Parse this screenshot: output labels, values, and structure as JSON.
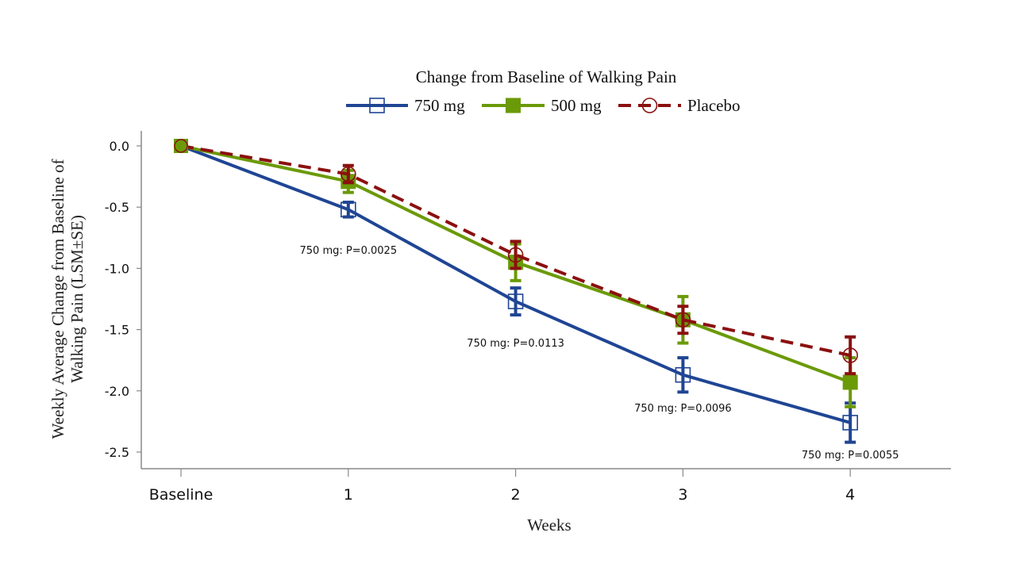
{
  "chart_data": {
    "type": "line",
    "title": "Change from Baseline of Walking Pain",
    "xlabel": "Weeks",
    "ylabel_lines": [
      "Weekly Average Change from Baseline of",
      "Walking Pain (LSM±SE)"
    ],
    "categories": [
      "Baseline",
      "1",
      "2",
      "3",
      "4"
    ],
    "ylim": [
      -2.62,
      0.12
    ],
    "yticks": [
      0.0,
      -0.5,
      -1.0,
      -1.5,
      -2.0,
      -2.5
    ],
    "ytick_labels": [
      "0.0",
      "-0.5",
      "-1.0",
      "-1.5",
      "-2.0",
      "-2.5"
    ],
    "grid": false,
    "legend_position": "top-center",
    "series": [
      {
        "name": "750 mg",
        "color": "#1f4594",
        "line_style": "solid",
        "marker": "open-square",
        "values": [
          0.0,
          -0.52,
          -1.27,
          -1.87,
          -2.26
        ],
        "se": [
          0.0,
          0.06,
          0.11,
          0.14,
          0.16
        ]
      },
      {
        "name": "500 mg",
        "color": "#6b9a08",
        "line_style": "solid",
        "marker": "filled-square",
        "values": [
          0.0,
          -0.29,
          -0.95,
          -1.42,
          -1.93
        ],
        "se": [
          0.0,
          0.09,
          0.15,
          0.19,
          0.2
        ]
      },
      {
        "name": "Placebo",
        "color": "#8b1010",
        "line_style": "dashed",
        "marker": "open-circle",
        "values": [
          0.0,
          -0.23,
          -0.89,
          -1.42,
          -1.71
        ],
        "se": [
          0.0,
          0.07,
          0.11,
          0.11,
          0.15
        ]
      }
    ],
    "annotations": [
      {
        "category": "1",
        "text": "750 mg: P=0.0025"
      },
      {
        "category": "2",
        "text": "750 mg: P=0.0113"
      },
      {
        "category": "3",
        "text": "750 mg: P=0.0096"
      },
      {
        "category": "4",
        "text": "750 mg: P=0.0055"
      }
    ]
  }
}
